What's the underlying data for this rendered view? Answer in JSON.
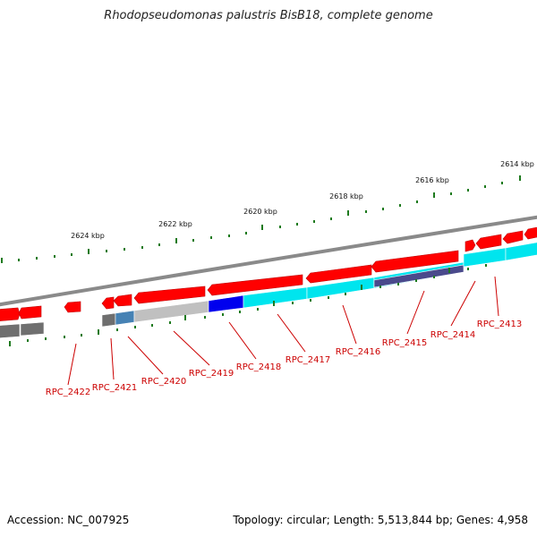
{
  "title": "Rhodopseudomonas palustris BisB18, complete genome",
  "accession": "Accession: NC_007925",
  "summary": "Topology: circular; Length: 5,513,844 bp; Genes: 4,958",
  "colors": {
    "backbone": "#8a8a8a",
    "tick": "#1e7a1e",
    "label": "#cc0000",
    "gene_forward": "#ff0000",
    "gene_reverse": "#ff0000",
    "cog_cyan": "#00e5ee",
    "cog_blue": "#0000ee",
    "cog_lightgray": "#c0c0c0",
    "cog_steel": "#4682b4",
    "cog_darkgray": "#6f6f6f",
    "cog_slate": "#4a4a8c"
  },
  "kbp_labels": [
    "2624 kbp",
    "2622 kbp",
    "2620 kbp",
    "2618 kbp",
    "2616 kbp",
    "2614 kbp"
  ],
  "gene_labels": [
    "RPC_2422",
    "RPC_2421",
    "RPC_2420",
    "RPC_2419",
    "RPC_2418",
    "RPC_2417",
    "RPC_2416",
    "RPC_2415",
    "RPC_2414",
    "RPC_2413"
  ]
}
